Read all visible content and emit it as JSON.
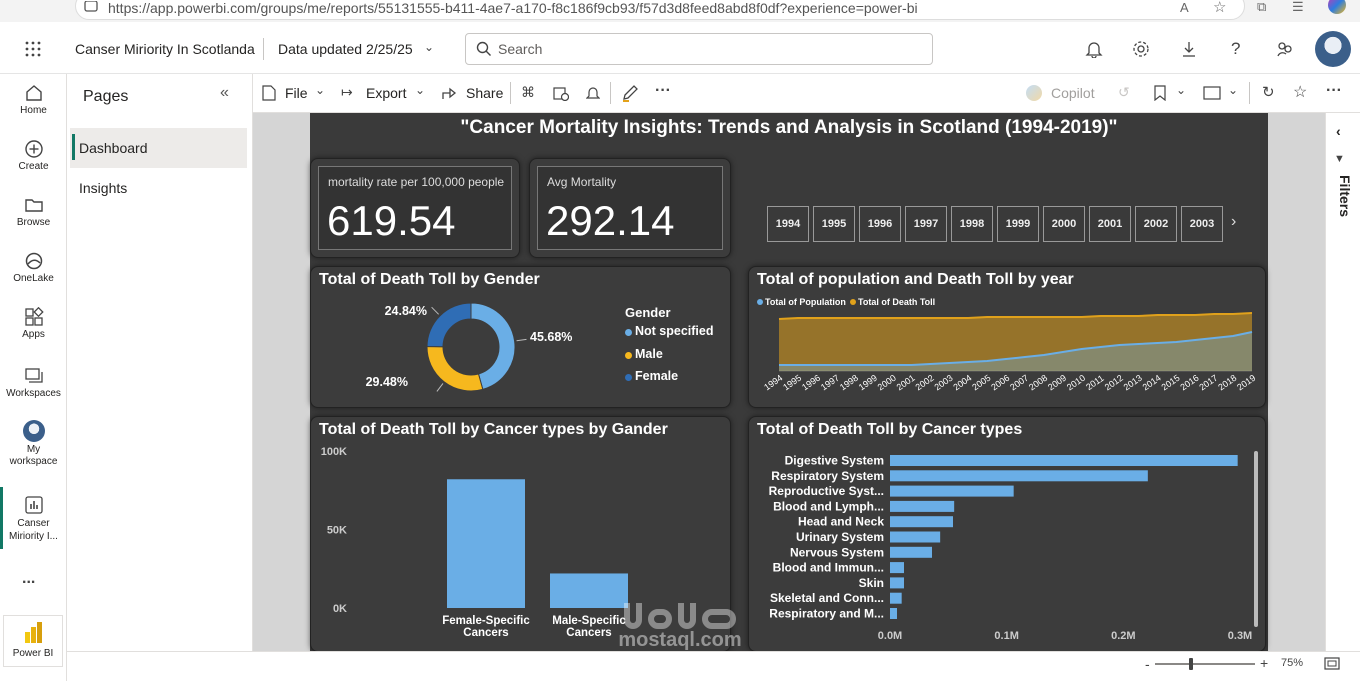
{
  "browser": {
    "url": "https://app.powerbi.com/groups/me/reports/55131555-b411-4ae7-a170-f8c186f9cb93/f57d3d8feed8abd8f0df?experience=power-bi"
  },
  "header": {
    "report_name": "Canser Miriority In Scotlanda",
    "data_updated": "Data updated 2/25/25",
    "search_placeholder": "Search"
  },
  "rail": {
    "items": [
      {
        "label": "Home"
      },
      {
        "label": "Create"
      },
      {
        "label": "Browse"
      },
      {
        "label": "OneLake"
      },
      {
        "label": "Apps"
      },
      {
        "label": "Workspaces"
      },
      {
        "label": "My workspace"
      },
      {
        "label": "Canser Miriority I..."
      }
    ],
    "more": "...",
    "brand": "Power BI"
  },
  "pages_pane": {
    "title": "Pages",
    "items": [
      {
        "label": "Dashboard",
        "active": true
      },
      {
        "label": "Insights",
        "active": false
      }
    ]
  },
  "toolbar": {
    "file": "File",
    "export": "Export",
    "share": "Share",
    "copilot": "Copilot"
  },
  "filters_label": "Filters",
  "report": {
    "title": "\"Cancer Mortality Insights: Trends and Analysis in Scotland (1994-2019)\"",
    "kpi1": {
      "label": "mortality rate per 100,000 people",
      "value": "619.54"
    },
    "kpi2": {
      "label": "Avg Mortality",
      "value": "292.14"
    },
    "year_slicer": [
      "1994",
      "1995",
      "1996",
      "1997",
      "1998",
      "1999",
      "2000",
      "2001",
      "2002",
      "2003"
    ],
    "donut": {
      "title": "Total of Death Toll by Gender",
      "legend_title": "Gender",
      "legend": [
        {
          "name": "Not specified",
          "color": "#6aaee6"
        },
        {
          "name": "Male",
          "color": "#f6b81e"
        },
        {
          "name": "Female",
          "color": "#2f6db5"
        }
      ]
    },
    "area": {
      "title": "Total of population and Death Toll by year",
      "legend": [
        {
          "name": "Total of Population",
          "color": "#6aaee6"
        },
        {
          "name": "Total of Death Toll",
          "color": "#e0a11b"
        }
      ]
    },
    "col": {
      "title": "Total of Death Toll by Cancer types by Gander"
    },
    "hbar": {
      "title": "Total of Death Toll by Cancer types"
    }
  },
  "status": {
    "zoom": "75%"
  },
  "watermark": {
    "text": "mostaql.com"
  },
  "chart_data": [
    {
      "type": "pie",
      "title": "Total of Death Toll by Gender",
      "categories": [
        "Not specified",
        "Male",
        "Female"
      ],
      "values": [
        45.68,
        29.48,
        24.84
      ],
      "labels": [
        "45.68%",
        "29.48%",
        "24.84%"
      ],
      "colors": [
        "#6aaee6",
        "#f6b81e",
        "#2f6db5"
      ]
    },
    {
      "type": "area",
      "title": "Total of population and Death Toll by year",
      "x": [
        "1994",
        "1995",
        "1996",
        "1997",
        "1998",
        "1999",
        "2000",
        "2001",
        "2002",
        "2003",
        "2004",
        "2005",
        "2006",
        "2007",
        "2008",
        "2009",
        "2010",
        "2011",
        "2012",
        "2013",
        "2014",
        "2015",
        "2016",
        "2017",
        "2018",
        "2019"
      ],
      "series": [
        {
          "name": "Total of Population",
          "values": [
            3,
            3,
            3,
            3,
            3,
            3,
            3,
            3,
            3.5,
            4,
            4.5,
            5,
            6,
            7,
            8,
            9.5,
            11,
            12,
            13,
            13.5,
            14,
            14.5,
            15.5,
            16.5,
            17.5,
            19.5
          ]
        },
        {
          "name": "Total of Death Toll",
          "values": [
            26,
            26.5,
            26.5,
            26.5,
            26.5,
            26.5,
            26.5,
            26.5,
            26.5,
            26.5,
            26.5,
            27,
            27,
            27,
            27,
            27,
            27,
            27.5,
            27.5,
            27.5,
            28,
            28,
            28,
            28.5,
            28.5,
            29
          ]
        }
      ],
      "ylim": [
        0,
        32
      ]
    },
    {
      "type": "bar",
      "title": "Total of Death Toll by Cancer types by Gander",
      "categories": [
        "Female-Specific Cancers",
        "Male-Specific Cancers"
      ],
      "values": [
        82000,
        22000
      ],
      "ylim": [
        0,
        100000
      ],
      "yticks": [
        "0K",
        "50K",
        "100K"
      ]
    },
    {
      "type": "bar",
      "orientation": "horizontal",
      "title": "Total of Death Toll by Cancer types",
      "categories": [
        "Digestive System",
        "Respiratory System",
        "Reproductive Syst...",
        "Blood and Lymph...",
        "Head and Neck",
        "Urinary System",
        "Nervous System",
        "Blood and Immun...",
        "Skin",
        "Skeletal and Conn...",
        "Respiratory and M..."
      ],
      "values": [
        298000,
        221000,
        106000,
        55000,
        54000,
        43000,
        36000,
        12000,
        12000,
        10000,
        6000
      ],
      "xlim": [
        0,
        300000
      ],
      "xticks": [
        "0.0M",
        "0.1M",
        "0.2M",
        "0.3M"
      ]
    }
  ]
}
